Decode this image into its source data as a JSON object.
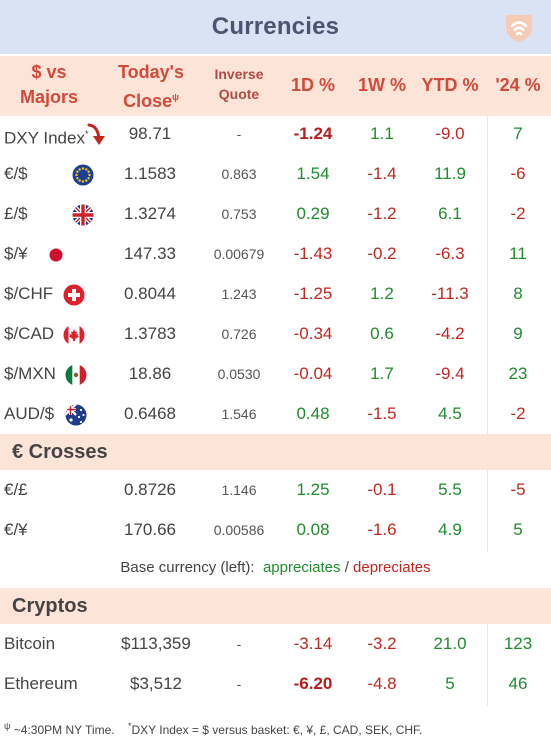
{
  "title": "Currencies",
  "columns": {
    "pair_l1": "$ vs",
    "pair_l2": "Majors",
    "close_l1": "Today's",
    "close_l2": "Close",
    "close_mark": "ψ",
    "inverse_l1": "Inverse",
    "inverse_l2": "Quote",
    "d1": "1D %",
    "w1": "1W %",
    "ytd": "YTD %",
    "y24": "'24 %"
  },
  "majors": [
    {
      "name": "DXY Index",
      "mark": "*",
      "close": "98.71",
      "inverse": "-",
      "d1": "-1.24",
      "w1": "1.1",
      "ytd": "-9.0",
      "y24": "7",
      "icon": "down-arrow-icon"
    },
    {
      "name": "€/$",
      "close": "1.1583",
      "inverse": "0.863",
      "d1": "1.54",
      "w1": "-1.4",
      "ytd": "11.9",
      "y24": "-6",
      "icon": "eu-flag-icon"
    },
    {
      "name": "£/$",
      "close": "1.3274",
      "inverse": "0.753",
      "d1": "0.29",
      "w1": "-1.2",
      "ytd": "6.1",
      "y24": "-2",
      "icon": "uk-flag-icon"
    },
    {
      "name": "$/¥",
      "close": "147.33",
      "inverse": "0.00679",
      "d1": "-1.43",
      "w1": "-0.2",
      "ytd": "-6.3",
      "y24": "11",
      "icon": "japan-flag-icon"
    },
    {
      "name": "$/CHF",
      "close": "0.8044",
      "inverse": "1.243",
      "d1": "-1.25",
      "w1": "1.2",
      "ytd": "-11.3",
      "y24": "8",
      "icon": "swiss-flag-icon"
    },
    {
      "name": "$/CAD",
      "close": "1.3783",
      "inverse": "0.726",
      "d1": "-0.34",
      "w1": "0.6",
      "ytd": "-4.2",
      "y24": "9",
      "icon": "canada-flag-icon"
    },
    {
      "name": "$/MXN",
      "close": "18.86",
      "inverse": "0.0530",
      "d1": "-0.04",
      "w1": "1.7",
      "ytd": "-9.4",
      "y24": "23",
      "icon": "mexico-flag-icon"
    },
    {
      "name": "AUD/$",
      "close": "0.6468",
      "inverse": "1.546",
      "d1": "0.48",
      "w1": "-1.5",
      "ytd": "4.5",
      "y24": "-2",
      "icon": "australia-flag-icon"
    }
  ],
  "crosses_title": "€ Crosses",
  "crosses": [
    {
      "name": "€/£",
      "close": "0.8726",
      "inverse": "1.146",
      "d1": "1.25",
      "w1": "-0.1",
      "ytd": "5.5",
      "y24": "-5"
    },
    {
      "name": "€/¥",
      "close": "170.66",
      "inverse": "0.00586",
      "d1": "0.08",
      "w1": "-1.6",
      "ytd": "4.9",
      "y24": "5"
    }
  ],
  "legend": {
    "prefix": "Base currency (left):",
    "up": "appreciates",
    "sep": "/",
    "down": "depreciates"
  },
  "cryptos_title": "Cryptos",
  "cryptos": [
    {
      "name": "Bitcoin",
      "close": "$113,359",
      "inverse": "-",
      "d1": "-3.14",
      "w1": "-3.2",
      "ytd": "21.0",
      "y24": "123"
    },
    {
      "name": "Ethereum",
      "close": "$3,512",
      "inverse": "-",
      "d1": "-6.20",
      "w1": "-4.8",
      "ytd": "5",
      "y24": "46"
    }
  ],
  "footer": {
    "mark1": "ψ",
    "note1": "~4:30PM NY Time.",
    "mark2": "*",
    "note2": "DXY Index = $ versus basket: €, ¥, £, CAD, SEK, CHF."
  },
  "colors": {
    "positive": "#1f8c2e",
    "negative": "#c0271f",
    "title_bg": "#d9e3f4",
    "header_bg": "#fce4d9"
  }
}
